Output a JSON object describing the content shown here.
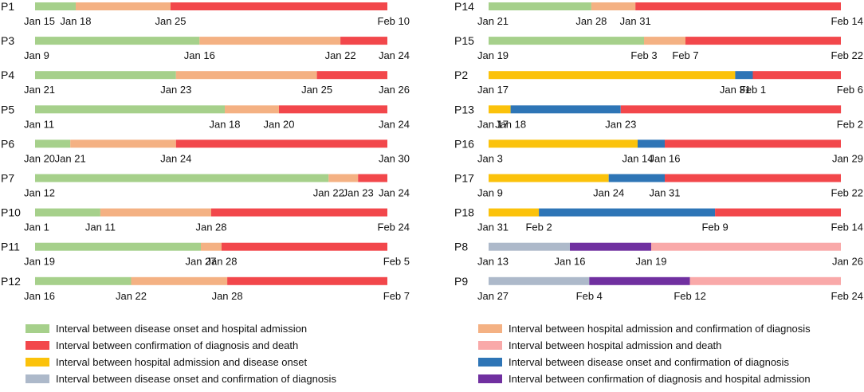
{
  "colors": {
    "green": "#a6d08b",
    "orange": "#f4b183",
    "red": "#f2474b",
    "yellow": "#fbc20b",
    "blue": "#2e75b6",
    "gray": "#adb9ca",
    "purple": "#7030a0",
    "pink": "#f9a9a9"
  },
  "chart_data": {
    "type": "timeline",
    "title": "",
    "columns": [
      {
        "patients": [
          {
            "label": "P1",
            "segments": [
              {
                "color": "green",
                "from": "Jan 15",
                "to": "Jan 18"
              },
              {
                "color": "orange",
                "from": "Jan 18",
                "to": "Jan 25"
              },
              {
                "color": "red",
                "from": "Jan 25",
                "to": "Feb 10"
              }
            ],
            "dates": [
              "Jan 15",
              "Jan 18",
              "Jan 25",
              "Feb 10"
            ]
          },
          {
            "label": "P3",
            "segments": [
              {
                "color": "green",
                "from": "Jan 9",
                "to": "Jan 16"
              },
              {
                "color": "orange",
                "from": "Jan 16",
                "to": "Jan 22"
              },
              {
                "color": "red",
                "from": "Jan 22",
                "to": "Jan 24"
              }
            ],
            "dates": [
              "Jan 9",
              "Jan 16",
              "Jan 22",
              "Jan 24"
            ]
          },
          {
            "label": "P4",
            "segments": [
              {
                "color": "green",
                "from": "Jan 21",
                "to": "Jan 23"
              },
              {
                "color": "orange",
                "from": "Jan 23",
                "to": "Jan 25"
              },
              {
                "color": "red",
                "from": "Jan 25",
                "to": "Jan 26"
              }
            ],
            "dates": [
              "Jan 21",
              "Jan 23",
              "Jan 25",
              "Jan 26"
            ]
          },
          {
            "label": "P5",
            "segments": [
              {
                "color": "green",
                "from": "Jan 11",
                "to": "Jan 18"
              },
              {
                "color": "orange",
                "from": "Jan 18",
                "to": "Jan 20"
              },
              {
                "color": "red",
                "from": "Jan 20",
                "to": "Jan 24"
              }
            ],
            "dates": [
              "Jan 11",
              "Jan 18",
              "Jan 20",
              "Jan 24"
            ]
          },
          {
            "label": "P6",
            "segments": [
              {
                "color": "green",
                "from": "Jan 20",
                "to": "Jan 21"
              },
              {
                "color": "orange",
                "from": "Jan 21",
                "to": "Jan 24"
              },
              {
                "color": "red",
                "from": "Jan 24",
                "to": "Jan 30"
              }
            ],
            "dates": [
              "Jan 20",
              "Jan 21",
              "Jan 24",
              "Jan 30"
            ]
          },
          {
            "label": "P7",
            "segments": [
              {
                "color": "green",
                "from": "Jan 12",
                "to": "Jan 22"
              },
              {
                "color": "orange",
                "from": "Jan 22",
                "to": "Jan 23"
              },
              {
                "color": "red",
                "from": "Jan 23",
                "to": "Jan 24"
              }
            ],
            "dates": [
              "Jan 12",
              "Jan 22",
              "Jan 23",
              "Jan 24"
            ]
          },
          {
            "label": "P10",
            "segments": [
              {
                "color": "green",
                "from": "Jan 1",
                "to": "Jan 11"
              },
              {
                "color": "orange",
                "from": "Jan 11",
                "to": "Jan 28"
              },
              {
                "color": "red",
                "from": "Jan 28",
                "to": "Feb 24"
              }
            ],
            "dates": [
              "Jan 1",
              "Jan 11",
              "Jan 28",
              "Feb 24"
            ]
          },
          {
            "label": "P11",
            "segments": [
              {
                "color": "green",
                "from": "Jan 19",
                "to": "Jan 27"
              },
              {
                "color": "orange",
                "from": "Jan 27",
                "to": "Jan 28"
              },
              {
                "color": "red",
                "from": "Jan 28",
                "to": "Feb 5"
              }
            ],
            "dates": [
              "Jan 19",
              "Jan 27",
              "Jan 28",
              "Feb 5"
            ]
          },
          {
            "label": "P12",
            "segments": [
              {
                "color": "green",
                "from": "Jan 16",
                "to": "Jan 22"
              },
              {
                "color": "orange",
                "from": "Jan 22",
                "to": "Jan 28"
              },
              {
                "color": "red",
                "from": "Jan 28",
                "to": "Feb 7"
              }
            ],
            "dates": [
              "Jan 16",
              "Jan 22",
              "Jan 28",
              "Feb 7"
            ]
          }
        ]
      },
      {
        "patients": [
          {
            "label": "P14",
            "segments": [
              {
                "color": "green",
                "from": "Jan 21",
                "to": "Jan 28"
              },
              {
                "color": "orange",
                "from": "Jan 28",
                "to": "Jan 31"
              },
              {
                "color": "red",
                "from": "Jan 31",
                "to": "Feb 14"
              }
            ],
            "dates": [
              "Jan 21",
              "Jan 28",
              "Jan 31",
              "Feb 14"
            ]
          },
          {
            "label": "P15",
            "segments": [
              {
                "color": "green",
                "from": "Jan 19",
                "to": "Feb 3"
              },
              {
                "color": "orange",
                "from": "Feb 3",
                "to": "Feb 7"
              },
              {
                "color": "red",
                "from": "Feb 7",
                "to": "Feb 22"
              }
            ],
            "dates": [
              "Jan 19",
              "Feb 3",
              "Feb 7",
              "Feb 22"
            ]
          },
          {
            "label": "P2",
            "segments": [
              {
                "color": "yellow",
                "from": "Jan 17",
                "to": "Jan 31"
              },
              {
                "color": "blue",
                "from": "Jan 31",
                "to": "Feb 1"
              },
              {
                "color": "red",
                "from": "Feb 1",
                "to": "Feb 6"
              }
            ],
            "dates": [
              "Jan 17",
              "Jan 31",
              "Feb 1",
              "Feb 6"
            ]
          },
          {
            "label": "P13",
            "segments": [
              {
                "color": "yellow",
                "from": "Jan 17",
                "to": "Jan 18"
              },
              {
                "color": "blue",
                "from": "Jan 18",
                "to": "Jan 23"
              },
              {
                "color": "red",
                "from": "Jan 23",
                "to": "Feb 2"
              }
            ],
            "dates": [
              "Jan 17",
              "Jan 18",
              "Jan 23",
              "Feb 2"
            ]
          },
          {
            "label": "P16",
            "segments": [
              {
                "color": "yellow",
                "from": "Jan 3",
                "to": "Jan 14"
              },
              {
                "color": "blue",
                "from": "Jan 14",
                "to": "Jan 16"
              },
              {
                "color": "red",
                "from": "Jan 16",
                "to": "Jan 29"
              }
            ],
            "dates": [
              "Jan 3",
              "Jan 14",
              "Jan 16",
              "Jan 29"
            ]
          },
          {
            "label": "P17",
            "segments": [
              {
                "color": "yellow",
                "from": "Jan 9",
                "to": "Jan 24"
              },
              {
                "color": "blue",
                "from": "Jan 24",
                "to": "Jan 31"
              },
              {
                "color": "red",
                "from": "Jan 31",
                "to": "Feb 22"
              }
            ],
            "dates": [
              "Jan 9",
              "Jan 24",
              "Jan 31",
              "Feb 22"
            ]
          },
          {
            "label": "P18",
            "segments": [
              {
                "color": "yellow",
                "from": "Jan 31",
                "to": "Feb 2"
              },
              {
                "color": "blue",
                "from": "Feb 2",
                "to": "Feb 9"
              },
              {
                "color": "red",
                "from": "Feb 9",
                "to": "Feb 14"
              }
            ],
            "dates": [
              "Jan 31",
              "Feb 2",
              "Feb 9",
              "Feb 14"
            ]
          },
          {
            "label": "P8",
            "segments": [
              {
                "color": "gray",
                "from": "Jan 13",
                "to": "Jan 16"
              },
              {
                "color": "purple",
                "from": "Jan 16",
                "to": "Jan 19"
              },
              {
                "color": "pink",
                "from": "Jan 19",
                "to": "Jan 26"
              }
            ],
            "dates": [
              "Jan 13",
              "Jan 16",
              "Jan 19",
              "Jan 26"
            ]
          },
          {
            "label": "P9",
            "segments": [
              {
                "color": "gray",
                "from": "Jan 27",
                "to": "Feb 4"
              },
              {
                "color": "purple",
                "from": "Feb 4",
                "to": "Feb 12"
              },
              {
                "color": "pink",
                "from": "Feb 12",
                "to": "Feb 24"
              }
            ],
            "dates": [
              "Jan 27",
              "Feb 4",
              "Feb 12",
              "Feb 24"
            ]
          }
        ]
      }
    ],
    "legend": [
      {
        "color": "green",
        "label": "Interval between disease onset and hospital admission"
      },
      {
        "color": "orange",
        "label": "Interval between hospital admission and confirmation of diagnosis"
      },
      {
        "color": "red",
        "label": "Interval between confirmation of diagnosis and death"
      },
      {
        "color": "pink",
        "label": "Interval between hospital admission and death"
      },
      {
        "color": "yellow",
        "label": "Interval between hospital admission and disease onset"
      },
      {
        "color": "blue",
        "label": "Interval between disease onset and confirmation of diagnosis"
      },
      {
        "color": "gray",
        "label": "Interval between disease onset and confirmation of diagnosis"
      },
      {
        "color": "purple",
        "label": "Interval between confirmation of diagnosis and hospital admission"
      }
    ]
  }
}
